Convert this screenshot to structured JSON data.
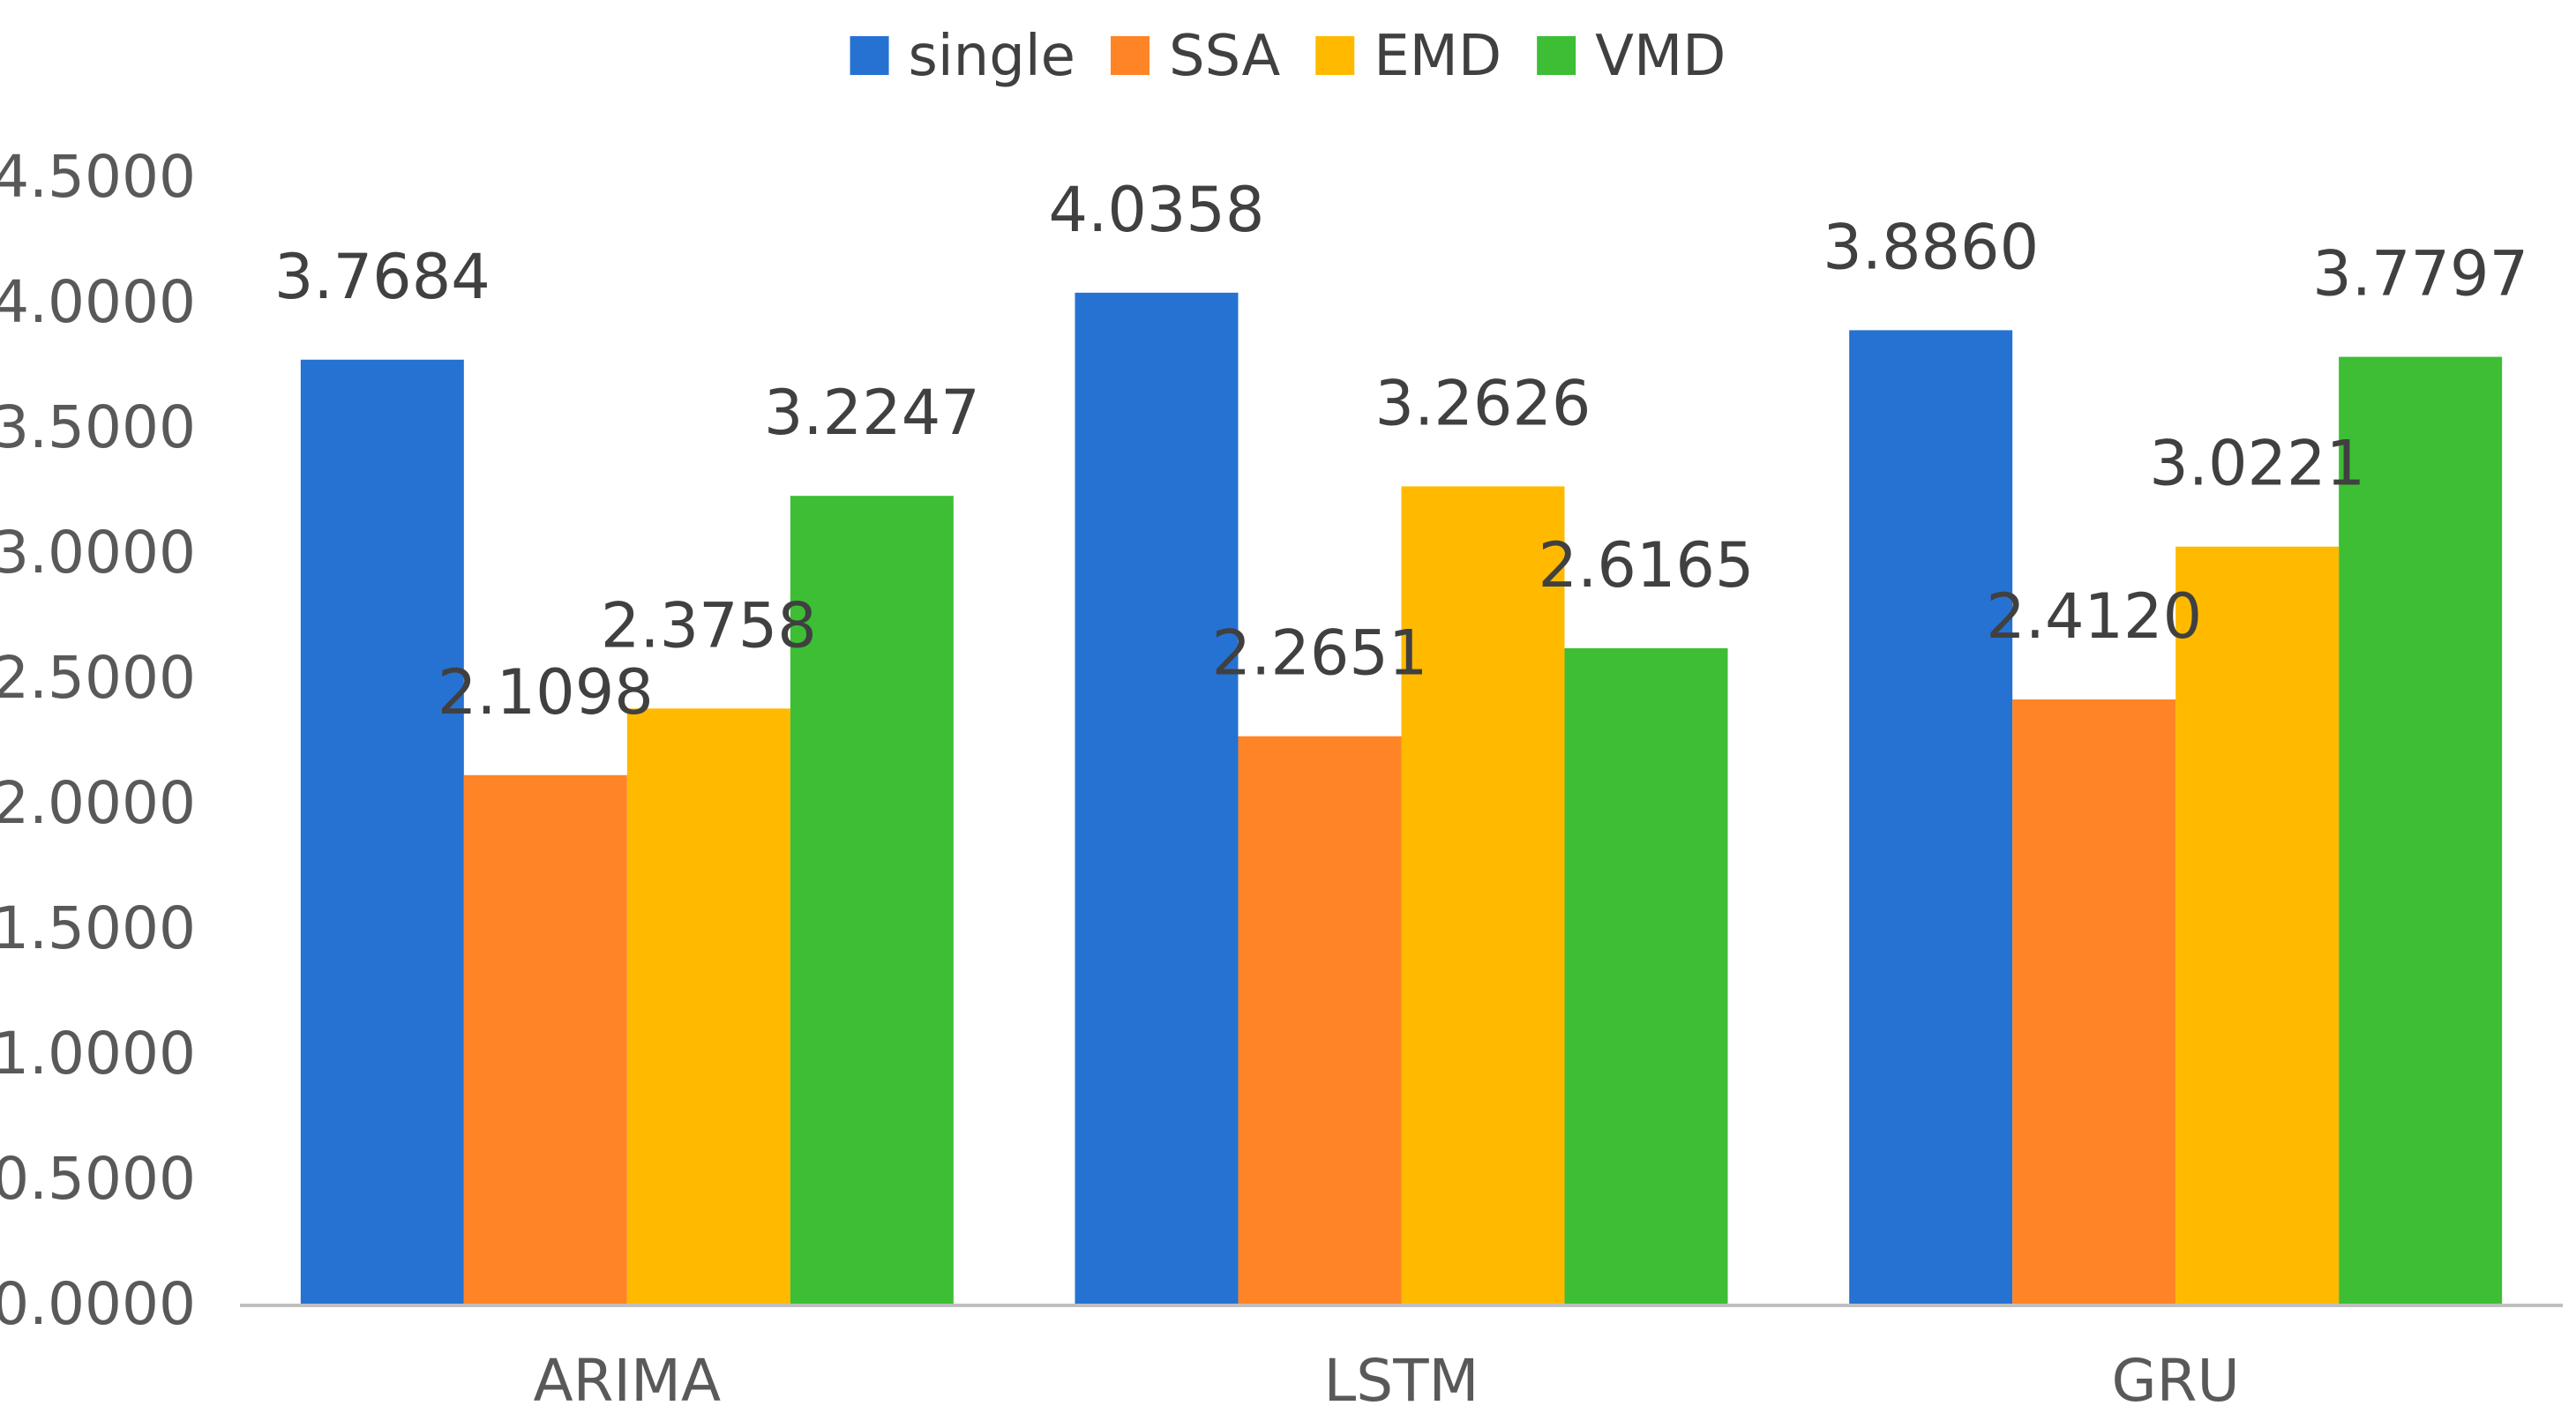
{
  "chart_data": {
    "type": "bar",
    "categories": [
      "ARIMA",
      "LSTM",
      "GRU"
    ],
    "series": [
      {
        "name": "single",
        "color": "#2672D3",
        "values": [
          3.7684,
          4.0358,
          3.886
        ],
        "labels": [
          "3.7684",
          "4.0358",
          "3.8860"
        ]
      },
      {
        "name": "SSA",
        "color": "#FF8426",
        "values": [
          2.1098,
          2.2651,
          2.412
        ],
        "labels": [
          "2.1098",
          "2.2651",
          "2.4120"
        ]
      },
      {
        "name": "EMD",
        "color": "#FFBA00",
        "values": [
          2.3758,
          3.2626,
          3.0221
        ],
        "labels": [
          "2.3758",
          "3.2626",
          "3.0221"
        ]
      },
      {
        "name": "VMD",
        "color": "#3DBE35",
        "values": [
          3.2247,
          2.6165,
          3.7797
        ],
        "labels": [
          "3.2247",
          "2.6165",
          "3.7797"
        ]
      }
    ],
    "yticks": [
      0,
      0.5,
      1.0,
      1.5,
      2.0,
      2.5,
      3.0,
      3.5,
      4.0,
      4.5
    ],
    "ytick_labels": [
      "0.0000",
      "0.5000",
      "1.0000",
      "1.5000",
      "2.0000",
      "2.5000",
      "3.0000",
      "3.5000",
      "4.0000",
      "4.5000"
    ],
    "ylim": [
      0,
      4.5
    ],
    "title": "",
    "xlabel": "",
    "ylabel": "",
    "legend_position": "top-center",
    "grid": false
  }
}
